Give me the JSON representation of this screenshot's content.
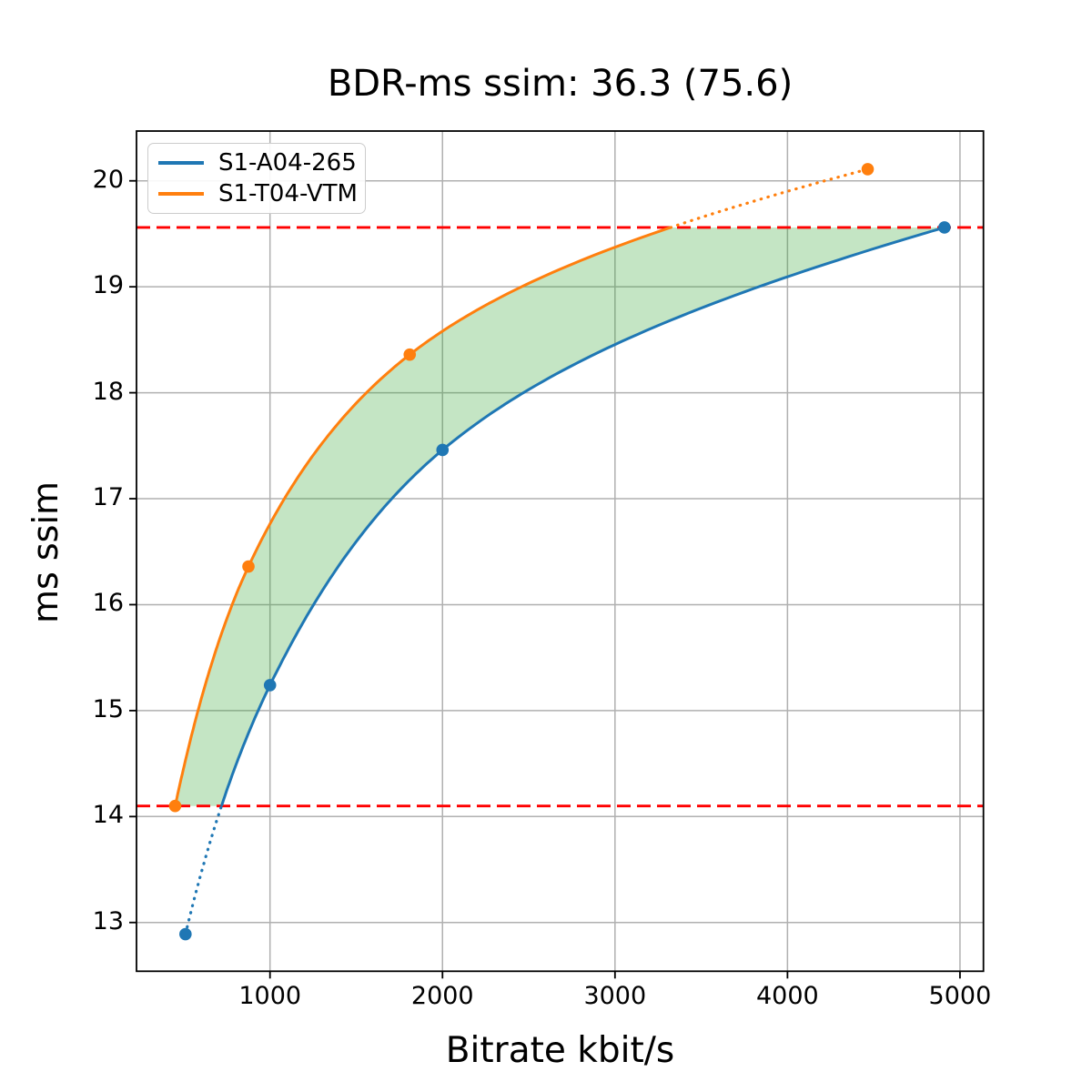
{
  "chart_data": {
    "type": "line",
    "title": "BDR-ms ssim: 36.3 (75.6)",
    "xlabel": "Bitrate kbit/s",
    "ylabel": "ms ssim",
    "xlim": [
      226,
      5136
    ],
    "ylim": [
      12.54,
      20.47
    ],
    "x_ticks": [
      1000,
      2000,
      3000,
      4000,
      5000
    ],
    "y_ticks": [
      13,
      14,
      15,
      16,
      17,
      18,
      19,
      20
    ],
    "grid": true,
    "grid_color": "#b0b0b0",
    "legend_position": "upper left",
    "series": [
      {
        "name": "S1-A04-265",
        "color": "#1f77b4",
        "x": [
          510,
          1000,
          2000,
          4910
        ],
        "y": [
          12.89,
          15.24,
          17.46,
          19.56
        ],
        "dotted_region": "below_lower_bound"
      },
      {
        "name": "S1-T04-VTM",
        "color": "#ff7f0e",
        "x": [
          450,
          875,
          1810,
          4465
        ],
        "y": [
          14.1,
          16.36,
          18.36,
          20.11
        ],
        "dotted_region": "above_upper_bound"
      }
    ],
    "bd_overlap": {
      "lower": 14.1,
      "upper": 19.56,
      "bound_line_color": "#ff0000",
      "bound_line_style": "dashed",
      "fill_color": "#2ca02c",
      "fill_alpha": 0.28
    }
  },
  "legend": {
    "items": [
      {
        "label": "S1-A04-265",
        "color": "#1f77b4"
      },
      {
        "label": "S1-T04-VTM",
        "color": "#ff7f0e"
      }
    ]
  }
}
